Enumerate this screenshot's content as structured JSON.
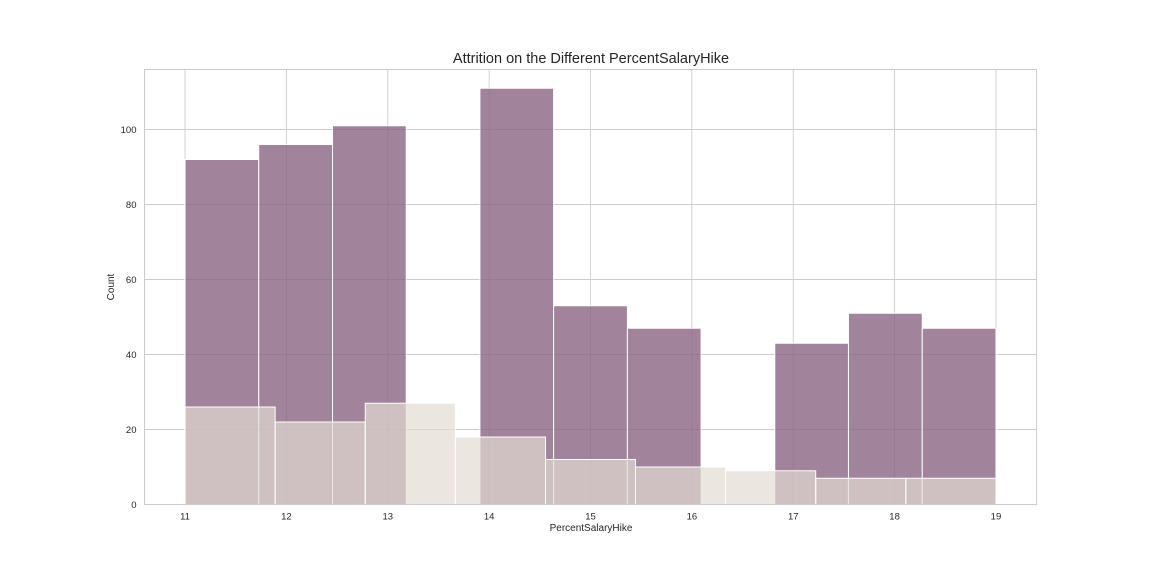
{
  "chart_data": {
    "type": "histogram",
    "title": "Attrition on the Different PercentSalaryHike",
    "xlabel": "PercentSalaryHike",
    "ylabel": "Count",
    "xlim": [
      10.6,
      19.4
    ],
    "ylim": [
      0,
      116
    ],
    "xticks": [
      11,
      12,
      13,
      14,
      15,
      16,
      17,
      18,
      19
    ],
    "yticks": [
      0,
      20,
      40,
      60,
      80,
      100
    ],
    "grid": true,
    "legend": "none",
    "series": [
      {
        "color": "#8a6482",
        "opacity": 0.8,
        "bins": [
          {
            "x0": 11.0,
            "x1": 11.727,
            "count": 92
          },
          {
            "x0": 11.727,
            "x1": 12.455,
            "count": 96
          },
          {
            "x0": 12.455,
            "x1": 13.182,
            "count": 101
          },
          {
            "x0": 13.182,
            "x1": 13.909,
            "count": 0
          },
          {
            "x0": 13.909,
            "x1": 14.636,
            "count": 111
          },
          {
            "x0": 14.636,
            "x1": 15.364,
            "count": 53
          },
          {
            "x0": 15.364,
            "x1": 16.091,
            "count": 47
          },
          {
            "x0": 16.091,
            "x1": 16.818,
            "count": 0
          },
          {
            "x0": 16.818,
            "x1": 17.545,
            "count": 43
          },
          {
            "x0": 17.545,
            "x1": 18.273,
            "count": 51
          },
          {
            "x0": 18.273,
            "x1": 19.0,
            "count": 47
          }
        ]
      },
      {
        "color": "#e2dbd1",
        "opacity": 0.7,
        "bins": [
          {
            "x0": 11.0,
            "x1": 11.889,
            "count": 26
          },
          {
            "x0": 11.889,
            "x1": 12.778,
            "count": 22
          },
          {
            "x0": 12.778,
            "x1": 13.667,
            "count": 27
          },
          {
            "x0": 13.667,
            "x1": 14.556,
            "count": 18
          },
          {
            "x0": 14.556,
            "x1": 15.444,
            "count": 12
          },
          {
            "x0": 15.444,
            "x1": 16.333,
            "count": 10
          },
          {
            "x0": 16.333,
            "x1": 17.222,
            "count": 9
          },
          {
            "x0": 17.222,
            "x1": 18.111,
            "count": 7
          },
          {
            "x0": 18.111,
            "x1": 19.0,
            "count": 7
          }
        ]
      }
    ]
  }
}
